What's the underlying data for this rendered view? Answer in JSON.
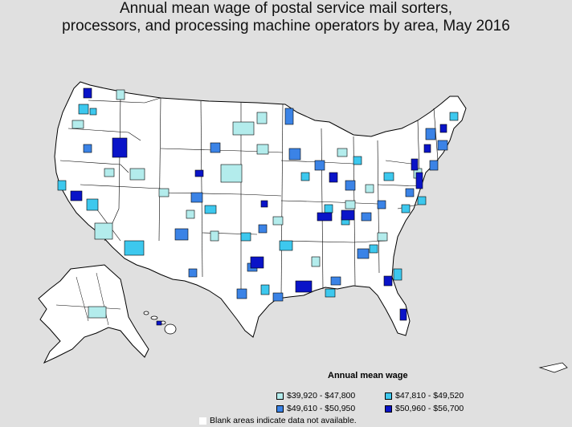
{
  "title": {
    "line1": "Annual mean wage of postal service mail sorters,",
    "line2": "processors, and processing machine operators by area, May 2016"
  },
  "legend": {
    "title": "Annual mean wage",
    "items": [
      {
        "label": "$39,920 - $47,800",
        "color": "#b3ecec"
      },
      {
        "label": "$47,810 - $49,520",
        "color": "#3dc8ee"
      },
      {
        "label": "$49,610 - $50,950",
        "color": "#3b83e6"
      },
      {
        "label": "$50,960 - $56,700",
        "color": "#0a14c8"
      }
    ]
  },
  "footnote": "Blank areas indicate data not available.",
  "colors": {
    "background": "#e0e0e0",
    "land": "#ffffff",
    "border": "#000000"
  }
}
